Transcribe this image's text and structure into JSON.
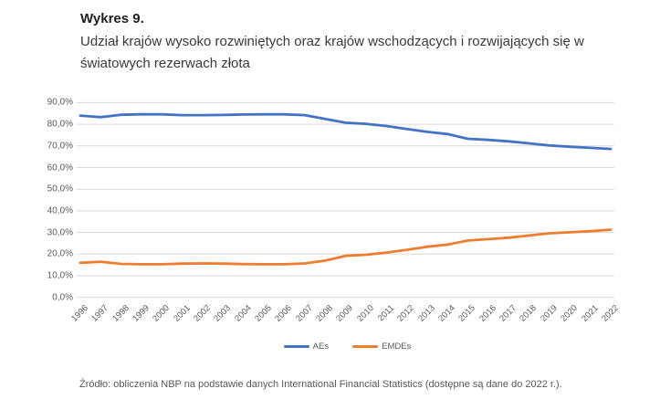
{
  "page": {
    "title": "Wykres 9.",
    "subtitle": "Udział krajów wysoko rozwiniętych oraz krajów wschodzących i rozwijających się w światowych rezerwach złota",
    "source": "Źródło: obliczenia NBP na podstawie danych International Financial Statistics (dostępne są dane do 2022 r.)."
  },
  "colors": {
    "grid": "#d9d9d9",
    "axis_text": "#595959",
    "aes_line": "#4472C4",
    "emdes_line": "#ED7D31"
  },
  "chart_data": {
    "type": "line",
    "title": "Udział krajów wysoko rozwiniętych oraz krajów wschodzących i rozwijających się w światowych rezerwach złota",
    "xlabel": "",
    "ylabel": "",
    "ylim": [
      0,
      90
    ],
    "grid": true,
    "legend_position": "bottom",
    "categories": [
      "1996",
      "1997",
      "1998",
      "1999",
      "2000",
      "2001",
      "2002",
      "2003",
      "2004",
      "2005",
      "2006",
      "2007",
      "2008",
      "2009",
      "2010",
      "2011",
      "2012",
      "2013",
      "2014",
      "2015",
      "2016",
      "2017",
      "2018",
      "2019",
      "2020",
      "2021",
      "2022"
    ],
    "y_tick_values": [
      0,
      10,
      20,
      30,
      40,
      50,
      60,
      70,
      80,
      90
    ],
    "y_tick_labels": [
      "0,0%",
      "10,0%",
      "20,0%",
      "30,0%",
      "40,0%",
      "50,0%",
      "60,0%",
      "70,0%",
      "80,0%",
      "90,0%"
    ],
    "series": [
      {
        "name": "AEs",
        "color": "#4472C4",
        "values": [
          84.0,
          83.3,
          84.4,
          84.6,
          84.6,
          84.2,
          84.2,
          84.3,
          84.5,
          84.6,
          84.6,
          84.2,
          82.5,
          80.7,
          80.2,
          79.2,
          77.8,
          76.5,
          75.5,
          73.3,
          72.8,
          72.1,
          71.2,
          70.2,
          69.6,
          69.1,
          68.6
        ]
      },
      {
        "name": "EMDEs",
        "color": "#ED7D31",
        "values": [
          16.0,
          16.5,
          15.5,
          15.3,
          15.3,
          15.6,
          15.7,
          15.6,
          15.4,
          15.3,
          15.3,
          15.7,
          17.0,
          19.2,
          19.7,
          20.7,
          22.0,
          23.4,
          24.4,
          26.3,
          26.9,
          27.6,
          28.6,
          29.6,
          30.1,
          30.6,
          31.3
        ]
      }
    ]
  }
}
